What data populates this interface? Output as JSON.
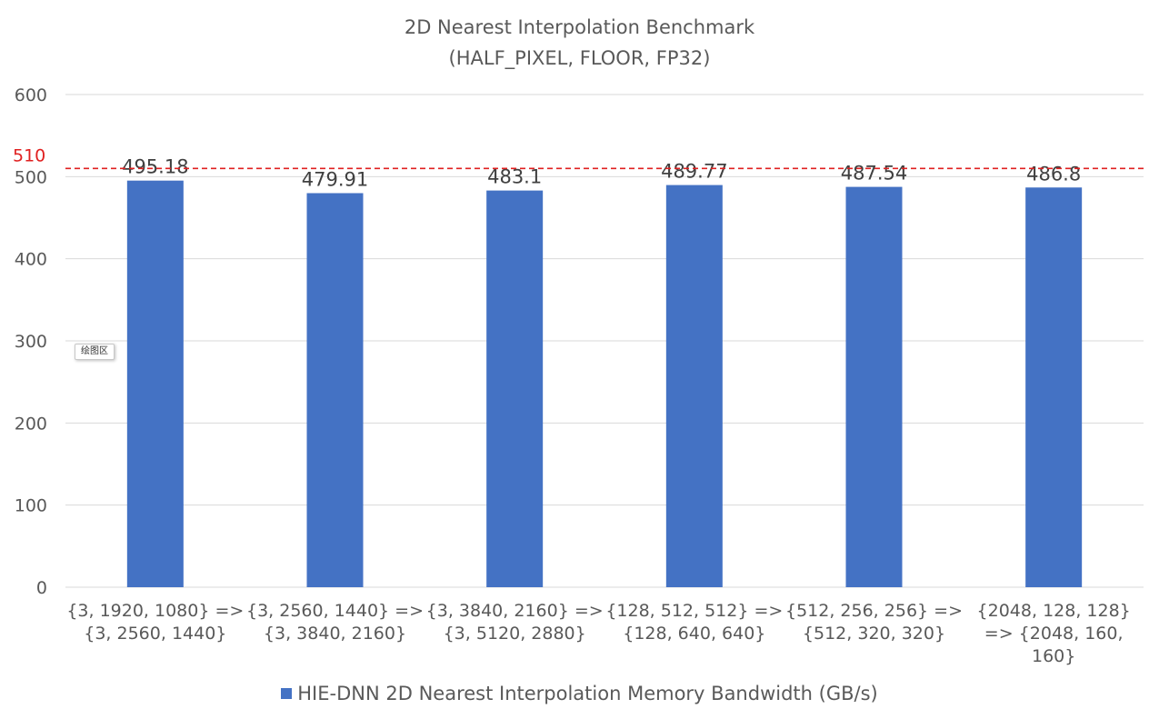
{
  "chart_data": {
    "type": "bar",
    "title_line1": "2D Nearest Interpolation Benchmark",
    "title_line2": "(HALF_PIXEL, FLOOR, FP32)",
    "categories": [
      [
        "{3, 1920, 1080} =>",
        "{3, 2560, 1440}"
      ],
      [
        "{3, 2560, 1440} =>",
        "{3, 3840, 2160}"
      ],
      [
        "{3, 3840, 2160} =>",
        "{3, 5120, 2880}"
      ],
      [
        "{128, 512, 512} =>",
        "{128, 640, 640}"
      ],
      [
        "{512, 256, 256} =>",
        "{512, 320, 320}"
      ],
      [
        "{2048, 128, 128}",
        "=> {2048, 160,",
        "160}"
      ]
    ],
    "series": [
      {
        "name": "HIE-DNN 2D Nearest Interpolation Memory Bandwidth (GB/s)",
        "values": [
          495.18,
          479.91,
          483.1,
          489.77,
          487.54,
          486.8
        ],
        "color": "#4472C4"
      }
    ],
    "data_labels": [
      "495.18",
      "479.91",
      "483.1",
      "489.77",
      "487.54",
      "486.8"
    ],
    "ylim": [
      0,
      600
    ],
    "yticks": [
      0,
      100,
      200,
      300,
      400,
      500,
      600
    ],
    "grid": true,
    "reference_line": {
      "value": 510,
      "label": "510",
      "color": "#E02020",
      "style": "dashed"
    },
    "legend_position": "bottom",
    "xlabel": "",
    "ylabel": ""
  },
  "plot_area_tag": "绘图区"
}
